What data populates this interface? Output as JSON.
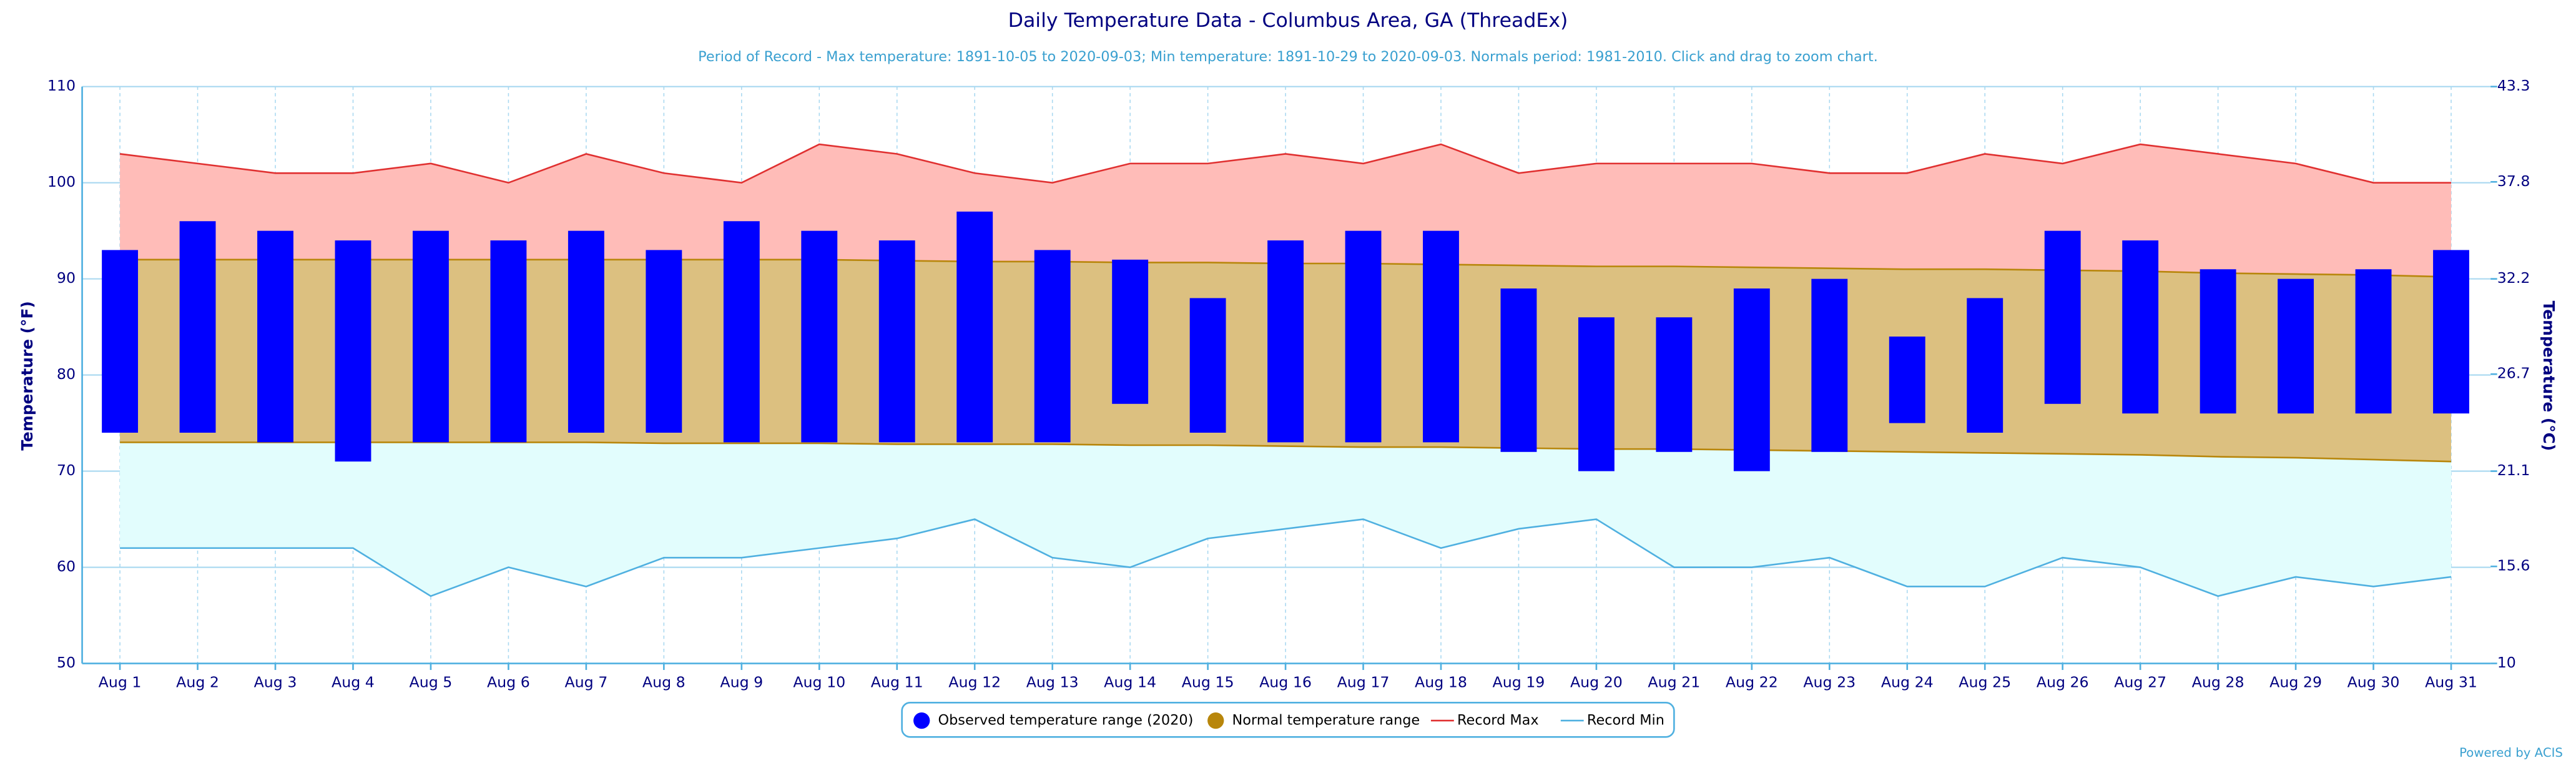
{
  "chart_data": {
    "type": "range",
    "title": "Daily Temperature Data - Columbus Area, GA (ThreadEx)",
    "subtitle": "Period of Record - Max temperature: 1891-10-05 to 2020-09-03; Min temperature: 1891-10-29 to 2020-09-03. Normals period: 1981-2010. Click and drag to zoom chart.",
    "ylabel": "Temperature (°F)",
    "y2label": "Temperature (°C)",
    "credit": "Powered by ACIS",
    "categories": [
      "Aug 1",
      "Aug 2",
      "Aug 3",
      "Aug 4",
      "Aug 5",
      "Aug 6",
      "Aug 7",
      "Aug 8",
      "Aug 9",
      "Aug 10",
      "Aug 11",
      "Aug 12",
      "Aug 13",
      "Aug 14",
      "Aug 15",
      "Aug 16",
      "Aug 17",
      "Aug 18",
      "Aug 19",
      "Aug 20",
      "Aug 21",
      "Aug 22",
      "Aug 23",
      "Aug 24",
      "Aug 25",
      "Aug 26",
      "Aug 27",
      "Aug 28",
      "Aug 29",
      "Aug 30",
      "Aug 31"
    ],
    "ylim": [
      50,
      110
    ],
    "yticks": [
      50,
      60,
      70,
      80,
      90,
      100,
      110
    ],
    "y2lim": [
      10,
      43.3
    ],
    "y2ticks": [
      10,
      15.6,
      21.1,
      26.7,
      32.2,
      37.8,
      43.3
    ],
    "grid": true,
    "series": [
      {
        "name": "Observed temperature range (2020)",
        "color": "#0000ff",
        "high": [
          93,
          96,
          95,
          94,
          95,
          94,
          95,
          93,
          96,
          95,
          94,
          97,
          93,
          92,
          88,
          94,
          95,
          95,
          89,
          86,
          86,
          89,
          90,
          84,
          88,
          95,
          94,
          91,
          90,
          91,
          93
        ],
        "low": [
          74,
          74,
          73,
          71,
          73,
          73,
          74,
          74,
          73,
          73,
          73,
          73,
          73,
          77,
          74,
          73,
          73,
          73,
          72,
          70,
          72,
          70,
          72,
          75,
          74,
          77,
          76,
          76,
          76,
          76,
          76
        ]
      },
      {
        "name": "Normal temperature range",
        "color": "#b8860b",
        "high": [
          92,
          92,
          92,
          92,
          92,
          92,
          92,
          92,
          92,
          92,
          91.9,
          91.8,
          91.8,
          91.7,
          91.7,
          91.6,
          91.6,
          91.5,
          91.4,
          91.3,
          91.3,
          91.2,
          91.1,
          91,
          91,
          90.9,
          90.8,
          90.6,
          90.5,
          90.4,
          90.2
        ],
        "low": [
          73,
          73,
          73,
          73,
          73,
          73,
          73,
          72.9,
          72.9,
          72.9,
          72.8,
          72.8,
          72.8,
          72.7,
          72.7,
          72.6,
          72.5,
          72.5,
          72.4,
          72.3,
          72.3,
          72.2,
          72.1,
          72,
          71.9,
          71.8,
          71.7,
          71.5,
          71.4,
          71.2,
          71
        ]
      },
      {
        "name": "Record Max",
        "color": "#e03030",
        "values": [
          103,
          102,
          101,
          101,
          102,
          100,
          103,
          101,
          100,
          104,
          103,
          101,
          100,
          102,
          102,
          103,
          102,
          104,
          101,
          102,
          102,
          102,
          101,
          101,
          103,
          102,
          104,
          103,
          102,
          100,
          100
        ]
      },
      {
        "name": "Record Min",
        "color": "#4fb0e0",
        "values": [
          62,
          62,
          62,
          62,
          57,
          60,
          58,
          61,
          61,
          62,
          63,
          65,
          61,
          60,
          63,
          64,
          65,
          62,
          64,
          65,
          60,
          60,
          61,
          58,
          58,
          61,
          60,
          57,
          59,
          58,
          59
        ]
      }
    ]
  }
}
